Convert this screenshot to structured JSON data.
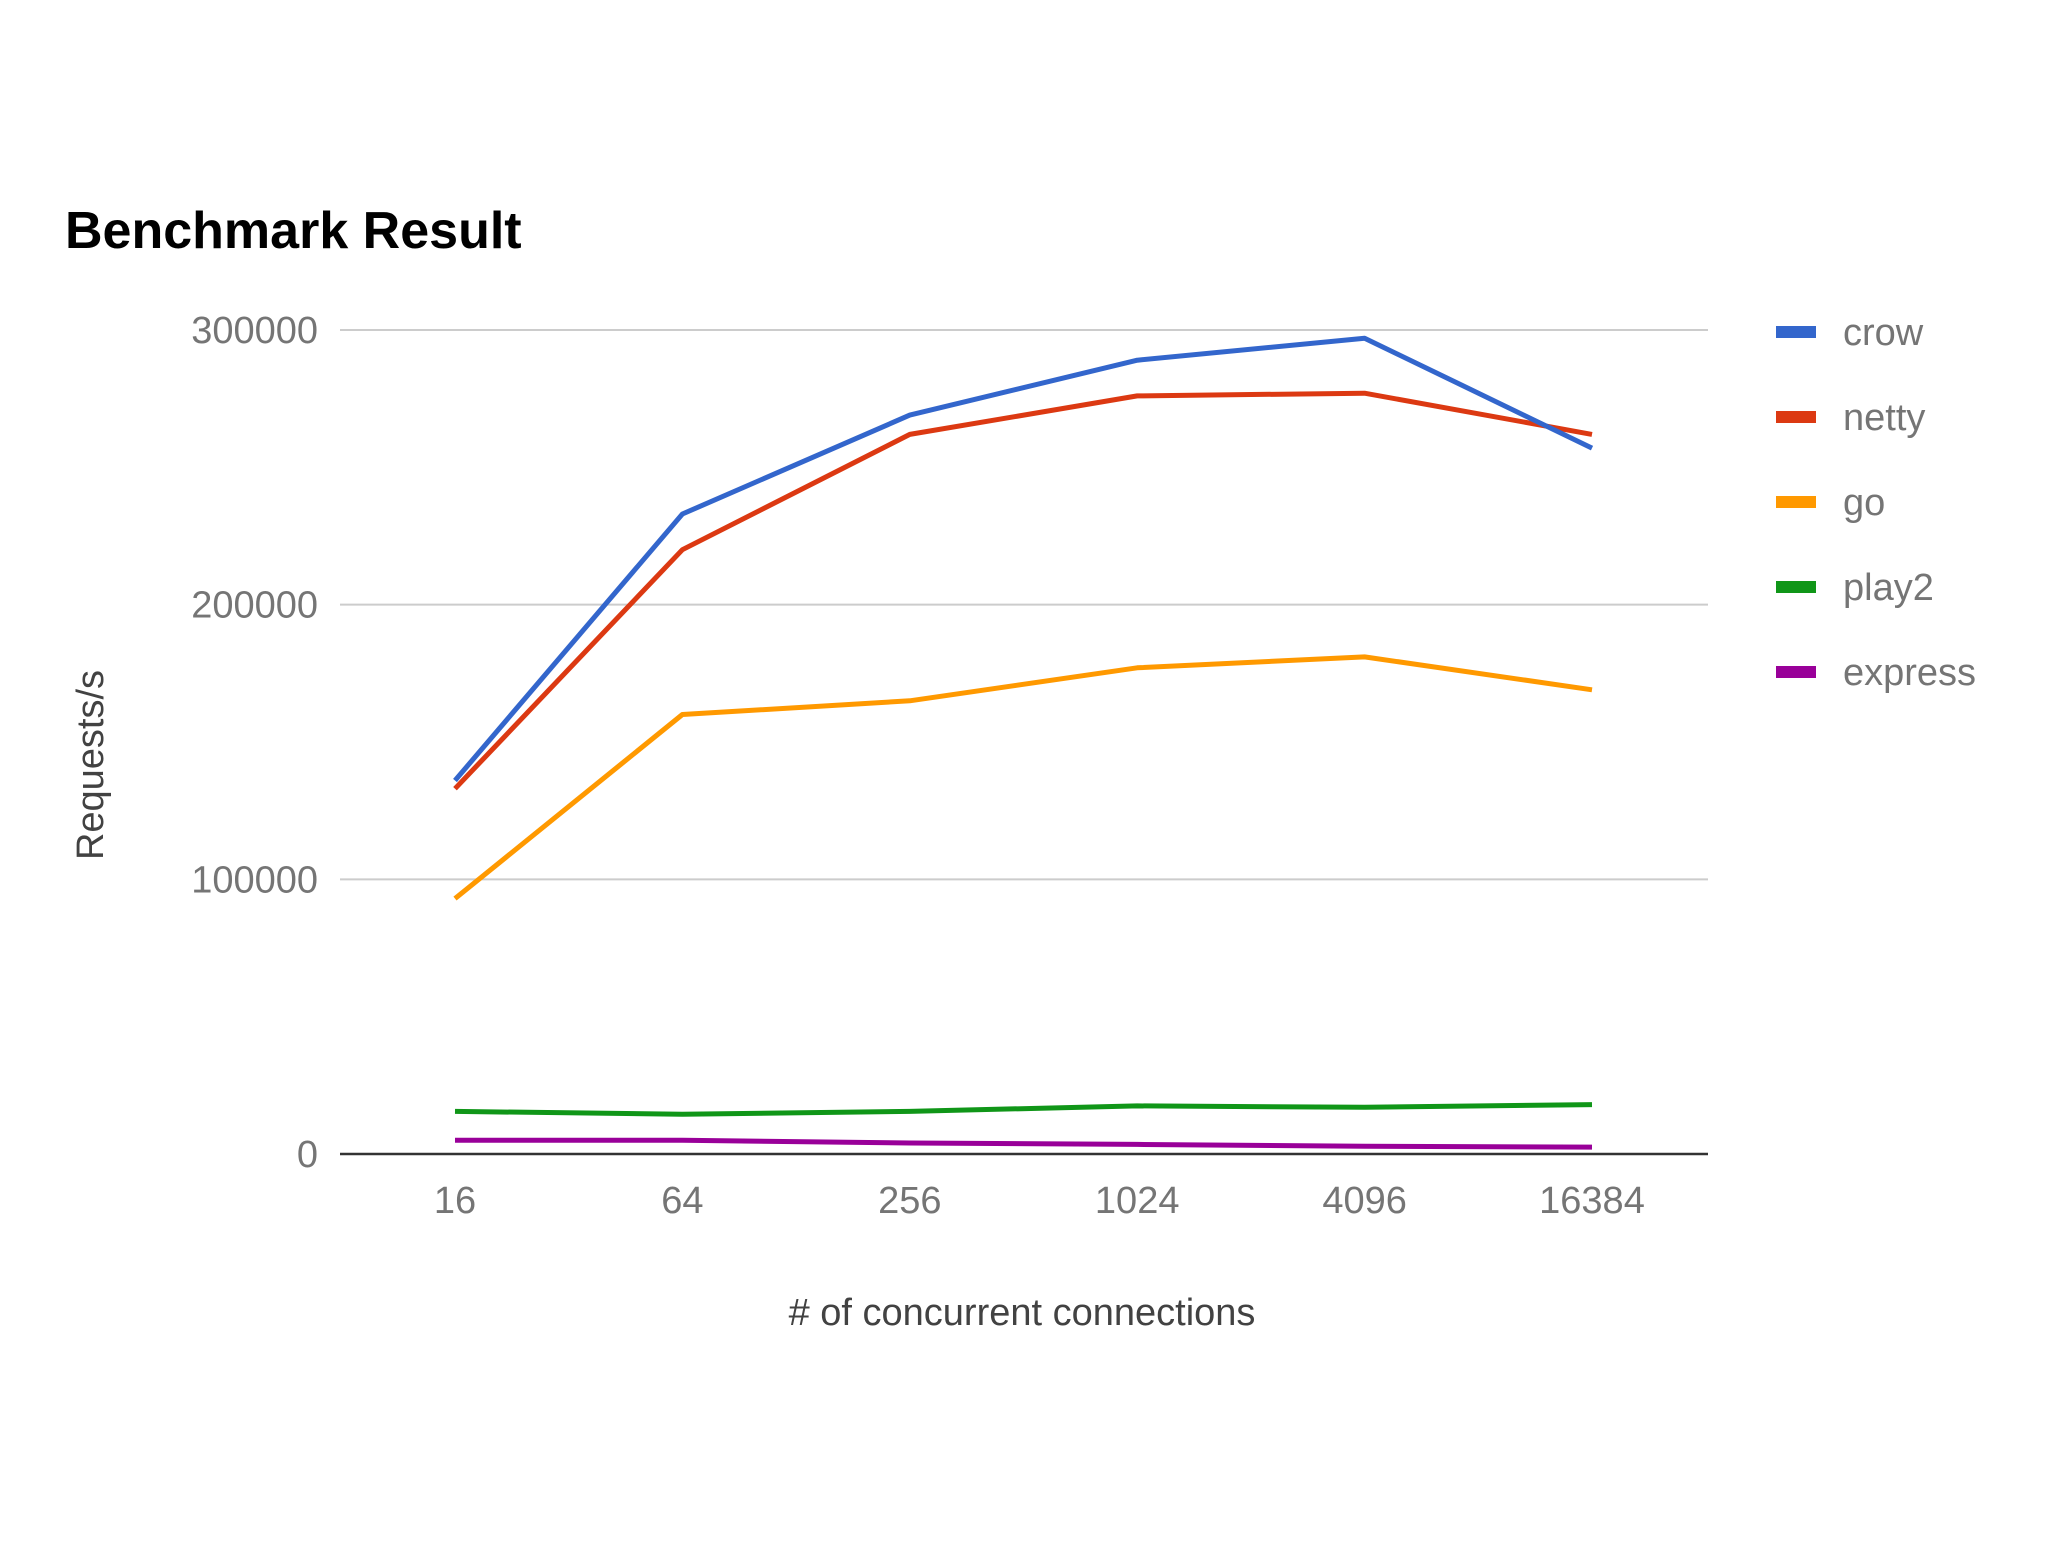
{
  "chart_data": {
    "type": "line",
    "title": "Benchmark Result",
    "xlabel": "# of concurrent connections",
    "ylabel": "Requests/s",
    "categories": [
      "16",
      "64",
      "256",
      "1024",
      "4096",
      "16384"
    ],
    "ylim": [
      0,
      300000
    ],
    "yticks": [
      "0",
      "100000",
      "200000",
      "300000"
    ],
    "grid": true,
    "legend_position": "right",
    "series": [
      {
        "name": "crow",
        "color": "#3366cc",
        "values": [
          136000,
          233000,
          269000,
          289000,
          297000,
          257000
        ]
      },
      {
        "name": "netty",
        "color": "#dc3912",
        "values": [
          133000,
          220000,
          262000,
          276000,
          277000,
          262000
        ]
      },
      {
        "name": "go",
        "color": "#ff9900",
        "values": [
          93000,
          160000,
          165000,
          177000,
          181000,
          169000
        ]
      },
      {
        "name": "play2",
        "color": "#109618",
        "values": [
          15500,
          14500,
          15500,
          17500,
          17000,
          18000
        ]
      },
      {
        "name": "express",
        "color": "#990099",
        "values": [
          5000,
          5000,
          4000,
          3500,
          2800,
          2500
        ]
      }
    ]
  }
}
